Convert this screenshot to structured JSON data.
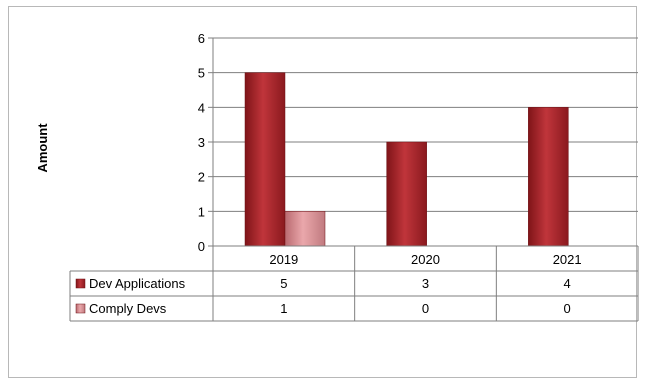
{
  "chart_data": {
    "type": "bar",
    "title": "",
    "xlabel": "",
    "ylabel": "Amount",
    "ylim": [
      0,
      6
    ],
    "yticks": [
      "0",
      "1",
      "2",
      "3",
      "4",
      "5",
      "6"
    ],
    "categories": [
      "2019",
      "2020",
      "2021"
    ],
    "series": [
      {
        "name": "Dev Applications",
        "values": [
          5,
          3,
          4
        ],
        "color": "#b3232a"
      },
      {
        "name": "Comply Devs",
        "values": [
          1,
          0,
          0
        ],
        "color": "#d98a90"
      }
    ],
    "table": {
      "rows": [
        {
          "label": "Dev Applications",
          "cells": [
            "5",
            "3",
            "4"
          ]
        },
        {
          "label": "Comply Devs",
          "cells": [
            "1",
            "0",
            "0"
          ]
        }
      ]
    },
    "grid": true,
    "legend": "data-table"
  }
}
